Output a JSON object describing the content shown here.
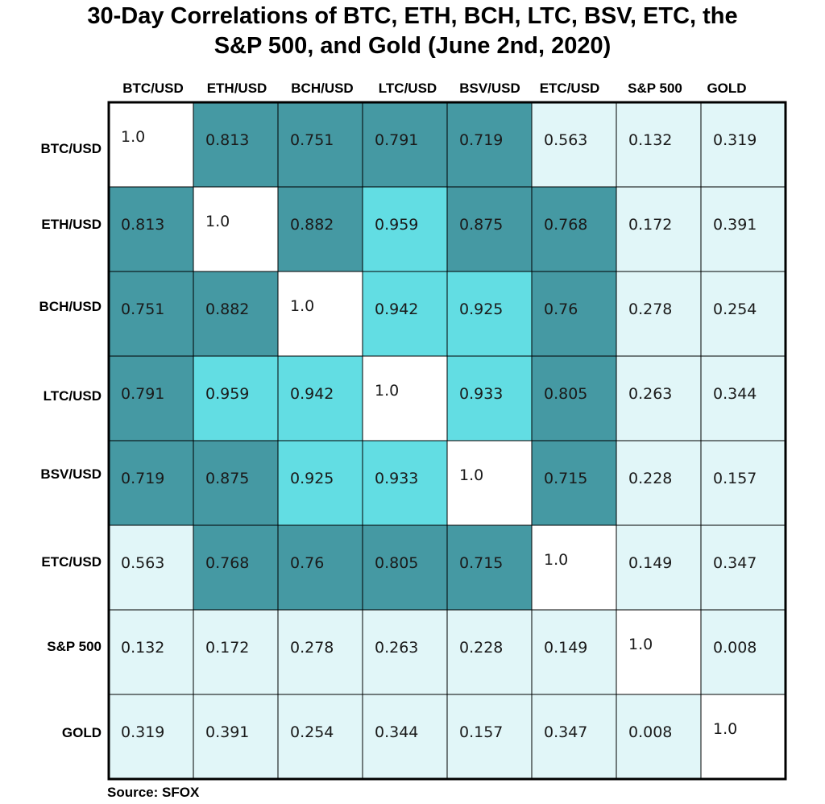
{
  "title_lines": [
    "30-Day Correlations of BTC, ETH, BCH, LTC, BSV, ETC, the",
    "S&P 500, and Gold (June 2nd, 2020)"
  ],
  "source": "Source: SFOX",
  "colors": {
    "self": "#ffffff",
    "high": "#62dde3",
    "medium": "#4599a3",
    "low": "#e1f6f8",
    "border": "#000000",
    "text": "#1a1a1a"
  },
  "chart_data": {
    "type": "heatmap",
    "labels": [
      "BTC/USD",
      "ETH/USD",
      "BCH/USD",
      "LTC/USD",
      "BSV/USD",
      "ETC/USD",
      "S&P 500",
      "GOLD"
    ],
    "values": [
      [
        "1.0",
        "0.813",
        "0.751",
        "0.791",
        "0.719",
        "0.563",
        "0.132",
        "0.319"
      ],
      [
        "0.813",
        "1.0",
        "0.882",
        "0.959",
        "0.875",
        "0.768",
        "0.172",
        "0.391"
      ],
      [
        "0.751",
        "0.882",
        "1.0",
        "0.942",
        "0.925",
        "0.76",
        "0.278",
        "0.254"
      ],
      [
        "0.791",
        "0.959",
        "0.942",
        "1.0",
        "0.933",
        "0.805",
        "0.263",
        "0.344"
      ],
      [
        "0.719",
        "0.875",
        "0.925",
        "0.933",
        "1.0",
        "0.715",
        "0.228",
        "0.157"
      ],
      [
        "0.563",
        "0.768",
        "0.76",
        "0.805",
        "0.715",
        "1.0",
        "0.149",
        "0.347"
      ],
      [
        "0.132",
        "0.172",
        "0.278",
        "0.263",
        "0.228",
        "0.149",
        "1.0",
        "0.008"
      ],
      [
        "0.319",
        "0.391",
        "0.254",
        "0.344",
        "0.157",
        "0.347",
        "0.008",
        "1.0"
      ]
    ],
    "color_levels": [
      [
        "self",
        "medium",
        "medium",
        "medium",
        "medium",
        "low",
        "low",
        "low"
      ],
      [
        "medium",
        "self",
        "medium",
        "high",
        "medium",
        "medium",
        "low",
        "low"
      ],
      [
        "medium",
        "medium",
        "self",
        "high",
        "high",
        "medium",
        "low",
        "low"
      ],
      [
        "medium",
        "high",
        "high",
        "self",
        "high",
        "medium",
        "low",
        "low"
      ],
      [
        "medium",
        "medium",
        "high",
        "high",
        "self",
        "medium",
        "low",
        "low"
      ],
      [
        "low",
        "medium",
        "medium",
        "medium",
        "medium",
        "self",
        "low",
        "low"
      ],
      [
        "low",
        "low",
        "low",
        "low",
        "low",
        "low",
        "self",
        "low"
      ],
      [
        "low",
        "low",
        "low",
        "low",
        "low",
        "low",
        "low",
        "self"
      ]
    ]
  }
}
